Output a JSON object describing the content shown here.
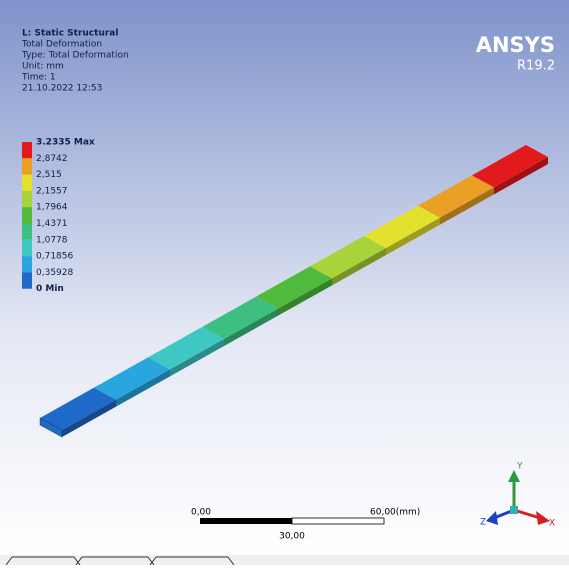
{
  "header": {
    "title": "L: Static Structural",
    "lines": [
      "Total Deformation",
      "Type: Total Deformation",
      "Unit: mm",
      "Time: 1",
      "21.10.2022 12:53"
    ]
  },
  "brand": {
    "name": "ANSYS",
    "version": "R19.2"
  },
  "legend": {
    "labels": [
      "3.2335 Max",
      "2,8742",
      "2,515",
      "2,1557",
      "1,7964",
      "1,4371",
      "1,0778",
      "0,71856",
      "0,35928",
      "0 Min"
    ],
    "colors": [
      "#e31a1c",
      "#e9a024",
      "#e3e02e",
      "#a9d33a",
      "#4fba3c",
      "#3dbf82",
      "#3fc7c3",
      "#2aa6de",
      "#1f69c9"
    ]
  },
  "scale": {
    "left": "0,00",
    "right": "60,00(mm)",
    "middle": "30,00"
  },
  "triad": {
    "y": "Y",
    "x": "X",
    "z": "Z"
  }
}
